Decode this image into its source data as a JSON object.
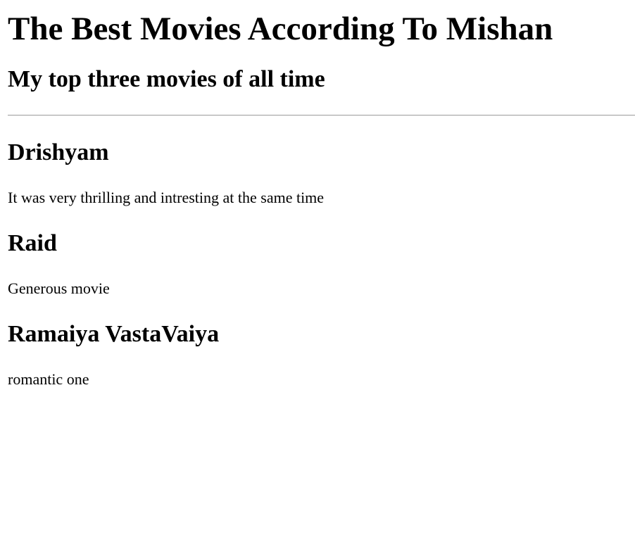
{
  "page": {
    "title": "The Best Movies According To Mishan",
    "subtitle": "My top three movies of all time"
  },
  "movies": [
    {
      "title": "Drishyam",
      "description": "It was very thrilling and intresting at the same time"
    },
    {
      "title": "Raid",
      "description": "Generous movie"
    },
    {
      "title": "Ramaiya VastaVaiya",
      "description": "romantic one"
    }
  ],
  "colors": {
    "background": "#ffffff",
    "text": "#000000",
    "divider": "#a8a8a8"
  }
}
